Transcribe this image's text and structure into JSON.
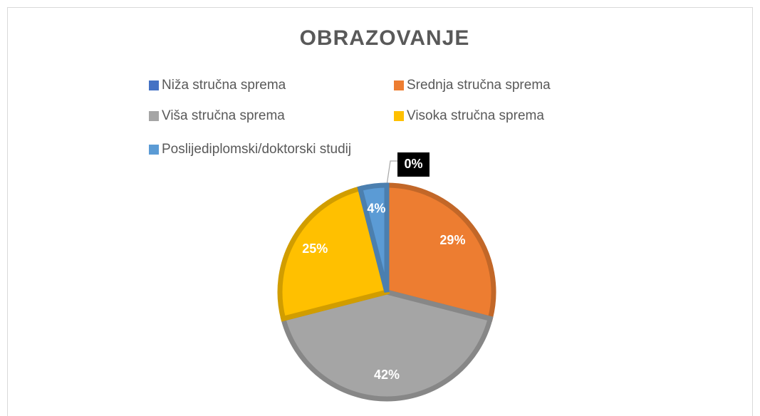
{
  "chart_data": {
    "type": "pie",
    "title": "OBRAZOVANJE",
    "categories": [
      "Niža stručna sprema",
      "Srednja stručna sprema",
      "Viša stručna sprema",
      "Visoka stručna sprema",
      "Poslijediplomski/doktorski studij"
    ],
    "values": [
      0,
      29,
      42,
      25,
      4
    ],
    "value_labels": [
      "0%",
      "29%",
      "42%",
      "25%",
      "4%"
    ],
    "colors": [
      "#4472c4",
      "#ed7d31",
      "#a5a5a5",
      "#ffc000",
      "#5b9bd5"
    ],
    "legend": "top"
  }
}
